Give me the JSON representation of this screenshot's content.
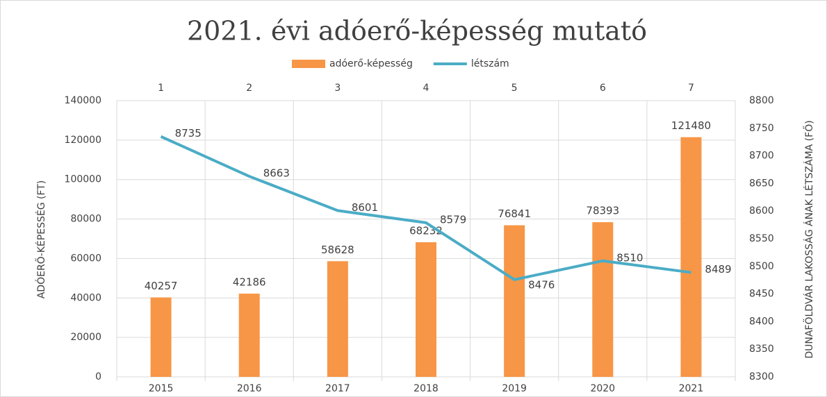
{
  "chart_data": {
    "type": "combo",
    "title": "2021. évi adóerő-képesség mutató",
    "categories": [
      2015,
      2016,
      2017,
      2018,
      2019,
      2020,
      2021
    ],
    "top_categories": [
      1,
      2,
      3,
      4,
      5,
      6,
      7
    ],
    "series": [
      {
        "name": "adóerő-képesség",
        "type": "bar",
        "color": "#f79646",
        "values": [
          40257,
          42186,
          58628,
          68232,
          76841,
          78393,
          121480
        ]
      },
      {
        "name": "létszám",
        "type": "line",
        "axis": "y2",
        "color": "#4bacc6",
        "values": [
          8735,
          8663,
          8601,
          8579,
          8476,
          8510,
          8489
        ]
      }
    ],
    "ylabel": "ADÓERŐ-KÉPESSÉG (FT)",
    "y2label": "DUNAFÖLDVÁR LAKOSSÁG ÁNAK LÉTSZÁMA (FŐ)",
    "ylim": [
      0,
      140000
    ],
    "yticks": [
      0,
      20000,
      40000,
      60000,
      80000,
      100000,
      120000,
      140000
    ],
    "y2lim": [
      8300,
      8800
    ],
    "y2ticks": [
      8300,
      8350,
      8400,
      8450,
      8500,
      8550,
      8600,
      8650,
      8700,
      8750,
      8800
    ],
    "grid": true,
    "legend": "top"
  }
}
